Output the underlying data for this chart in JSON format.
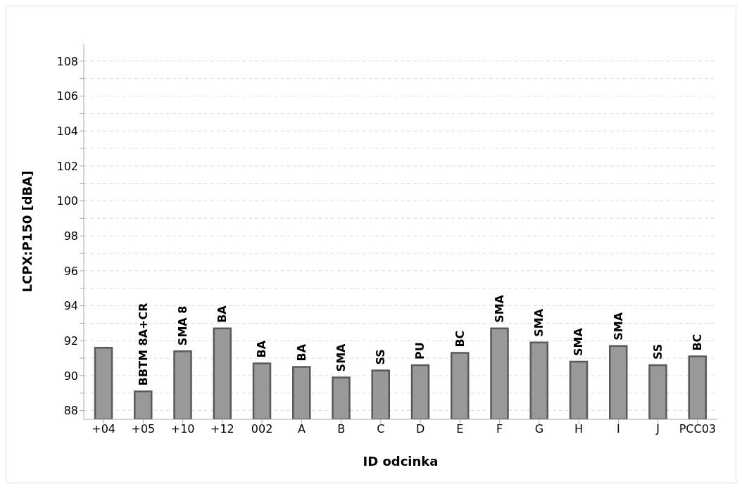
{
  "chart_data": {
    "type": "bar",
    "xlabel": "ID odcinka",
    "ylabel": "LCPX:P150 [dBA]",
    "categories": [
      "+04",
      "+05",
      "+10",
      "+12",
      "002",
      "A",
      "B",
      "C",
      "D",
      "E",
      "F",
      "G",
      "H",
      "I",
      "J",
      "PCC03"
    ],
    "values": [
      91.6,
      89.1,
      91.4,
      92.7,
      90.7,
      90.5,
      89.9,
      90.3,
      90.6,
      91.3,
      92.7,
      91.9,
      90.8,
      91.7,
      90.6,
      91.1
    ],
    "color": "#999999",
    "ylim": [
      87.5,
      109
    ],
    "yticks": [
      88,
      {
        "value": 89,
        "label": null
      },
      90,
      {
        "value": 91,
        "label": null
      },
      92,
      {
        "value": 93,
        "label": null
      },
      94,
      {
        "value": 95,
        "label": null
      },
      96,
      {
        "value": 97,
        "label": null
      },
      98,
      {
        "value": 99,
        "label": null
      },
      100,
      {
        "value": 101,
        "label": null
      },
      102,
      {
        "value": 103,
        "label": null
      },
      104,
      {
        "value": 105,
        "label": null
      },
      106,
      {
        "value": 107,
        "label": null
      },
      108
    ],
    "grid": "y",
    "annotations": [
      {
        "text": "BBTM 8A+CR",
        "x": "+05",
        "y": 89.1
      },
      {
        "text": "SMA 8",
        "x": "+10",
        "y": 91.4
      },
      {
        "text": "BA",
        "x": "+12",
        "y": 92.7
      },
      {
        "text": "BA",
        "x": "002",
        "y": 90.7
      },
      {
        "text": "BA",
        "x": "A",
        "y": 90.5
      },
      {
        "text": "SMA",
        "x": "B",
        "y": 89.9
      },
      {
        "text": "SS",
        "x": "C",
        "y": 90.3
      },
      {
        "text": "PU",
        "x": "D",
        "y": 90.6
      },
      {
        "text": "BC",
        "x": "E",
        "y": 91.3
      },
      {
        "text": "SMA",
        "x": "F",
        "y": 92.7
      },
      {
        "text": "SMA",
        "x": "G",
        "y": 91.9
      },
      {
        "text": "SMA",
        "x": "H",
        "y": 90.8
      },
      {
        "text": "SMA",
        "x": "I",
        "y": 91.7
      },
      {
        "text": "SS",
        "x": "J",
        "y": 90.6
      },
      {
        "text": "BC",
        "x": "PCC03",
        "y": 91.1
      }
    ]
  }
}
